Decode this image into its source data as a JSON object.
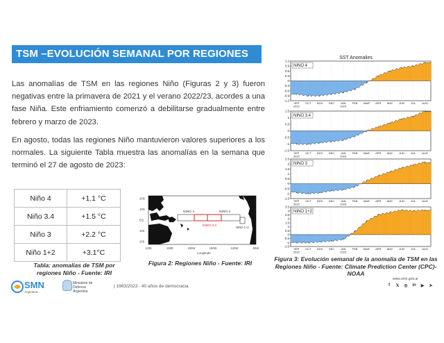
{
  "header": {
    "title": "TSM –EVOLUCIÓN SEMANAL POR REGIONES"
  },
  "body": {
    "paragraph1": "Las anomalías de TSM en las regiones Niño (Figuras 2 y 3) fueron negativas entre la primavera de 2021 y el verano 2022/23, acordes a una fase Niña. Este enfriamiento comenzó a debilitarse gradualmente entre febrero y marzo de 2023.",
    "paragraph2": "En agosto, todas las regiones Niño mantuvieron valores superiores a los normales. La siguiente Tabla muestra las anomalías en la semana que terminó el 27 de agosto de 2023:"
  },
  "table": {
    "rows": [
      {
        "region": "Niño 4",
        "value": "+1.1 °C"
      },
      {
        "region": "Niño 3.4",
        "value": "+1.5 °C"
      },
      {
        "region": "Niño 3",
        "value": "+2.2 °C"
      },
      {
        "region": "Niño 1+2",
        "value": "+3.1°C"
      }
    ],
    "caption": "Tabla: anomalías de TSM por regiones Niño - Fuente: IRI"
  },
  "figure2": {
    "caption": "Figura 2: Regiones Niño - Fuente: IRI",
    "labels": {
      "nino4": "NINO 4",
      "nino3": "NINO 3",
      "nino34": "NINO 3.4",
      "nino12": "NINO 1+2",
      "xaxis": "Longitude"
    },
    "lat_ticks": [
      "20N",
      "10N",
      "EQ",
      "10S",
      "20S"
    ],
    "lon_ticks": [
      "120E",
      "150E",
      "180W",
      "150W",
      "120W",
      "90W"
    ]
  },
  "figure3": {
    "title": "SST Anomalies",
    "caption": "Figura 3: Evolución semanal de la anomalía de TSM en las Regiones Niño - Fuente: Climate Prediction Center (CPC)-NOAA",
    "months": [
      "SEP",
      "OCT",
      "NOV",
      "DEC",
      "JAN",
      "FEB",
      "MAR",
      "APR",
      "MAY",
      "JUN",
      "JUL",
      "AUG"
    ],
    "year_labels": [
      "2022",
      "2023"
    ],
    "colors": {
      "positive": "#f5a623",
      "negative": "#7bb3ea"
    }
  },
  "chart_data": [
    {
      "type": "area",
      "title": "NINO 4",
      "ylim": [
        -1.2,
        1.2
      ],
      "yticks": [
        "1.2",
        "0.9",
        "0.6",
        "0.3",
        "0",
        "-0.3",
        "-0.6",
        "-0.9",
        "-1.2"
      ],
      "x": [
        "SEP",
        "OCT",
        "NOV",
        "DEC",
        "JAN",
        "FEB",
        "MAR",
        "APR",
        "MAY",
        "JUN",
        "JUL",
        "AUG"
      ],
      "values": [
        -0.8,
        -0.9,
        -0.9,
        -0.8,
        -0.7,
        -0.5,
        -0.1,
        0.3,
        0.6,
        0.8,
        0.9,
        1.1
      ]
    },
    {
      "type": "area",
      "title": "NINO 3.4",
      "ylim": [
        -1.5,
        1.5
      ],
      "yticks": [
        "1.5",
        "1",
        "0.5",
        "0",
        "-0.5",
        "-1",
        "-1.5"
      ],
      "x": [
        "SEP",
        "OCT",
        "NOV",
        "DEC",
        "JAN",
        "FEB",
        "MAR",
        "APR",
        "MAY",
        "JUN",
        "JUL",
        "AUG"
      ],
      "values": [
        -1.0,
        -1.0,
        -0.9,
        -0.8,
        -0.7,
        -0.4,
        0.0,
        0.3,
        0.6,
        0.9,
        1.1,
        1.5
      ]
    },
    {
      "type": "area",
      "title": "NINO 3",
      "ylim": [
        -1.5,
        2.5
      ],
      "yticks": [
        "2.5",
        "2",
        "1.5",
        "1",
        "0.5",
        "0",
        "-0.5",
        "-1",
        "-1.5"
      ],
      "x": [
        "SEP",
        "OCT",
        "NOV",
        "DEC",
        "JAN",
        "FEB",
        "MAR",
        "APR",
        "MAY",
        "JUN",
        "JUL",
        "AUG"
      ],
      "values": [
        -0.9,
        -1.0,
        -0.9,
        -0.7,
        -0.6,
        -0.3,
        0.3,
        0.8,
        1.2,
        1.6,
        1.9,
        2.2
      ]
    },
    {
      "type": "area",
      "title": "NINO 1+2",
      "ylim": [
        -1.5,
        3.5
      ],
      "yticks": [
        "3.5",
        "3",
        "2.5",
        "2",
        "1.5",
        "1",
        "0.5",
        "0",
        "-0.5",
        "-1",
        "-1.5"
      ],
      "x": [
        "SEP",
        "OCT",
        "NOV",
        "DEC",
        "JAN",
        "FEB",
        "MAR",
        "APR",
        "MAY",
        "JUN",
        "JUL",
        "AUG"
      ],
      "values": [
        -1.0,
        -1.0,
        -0.9,
        -0.8,
        -0.6,
        0.4,
        1.7,
        2.5,
        2.8,
        3.1,
        3.0,
        3.1
      ]
    }
  ],
  "footer": {
    "logo_text": "SMN",
    "logo_sub": "Argentina",
    "ministry": "Ministerio de Defensa Argentina",
    "note": "| 1983/2023 - 40 años de democracia",
    "website": "www.smn.gob.ar",
    "social_icons": [
      "facebook-icon",
      "twitter-icon",
      "instagram-icon",
      "linkedin-icon",
      "youtube-icon",
      "telegram-icon"
    ]
  }
}
